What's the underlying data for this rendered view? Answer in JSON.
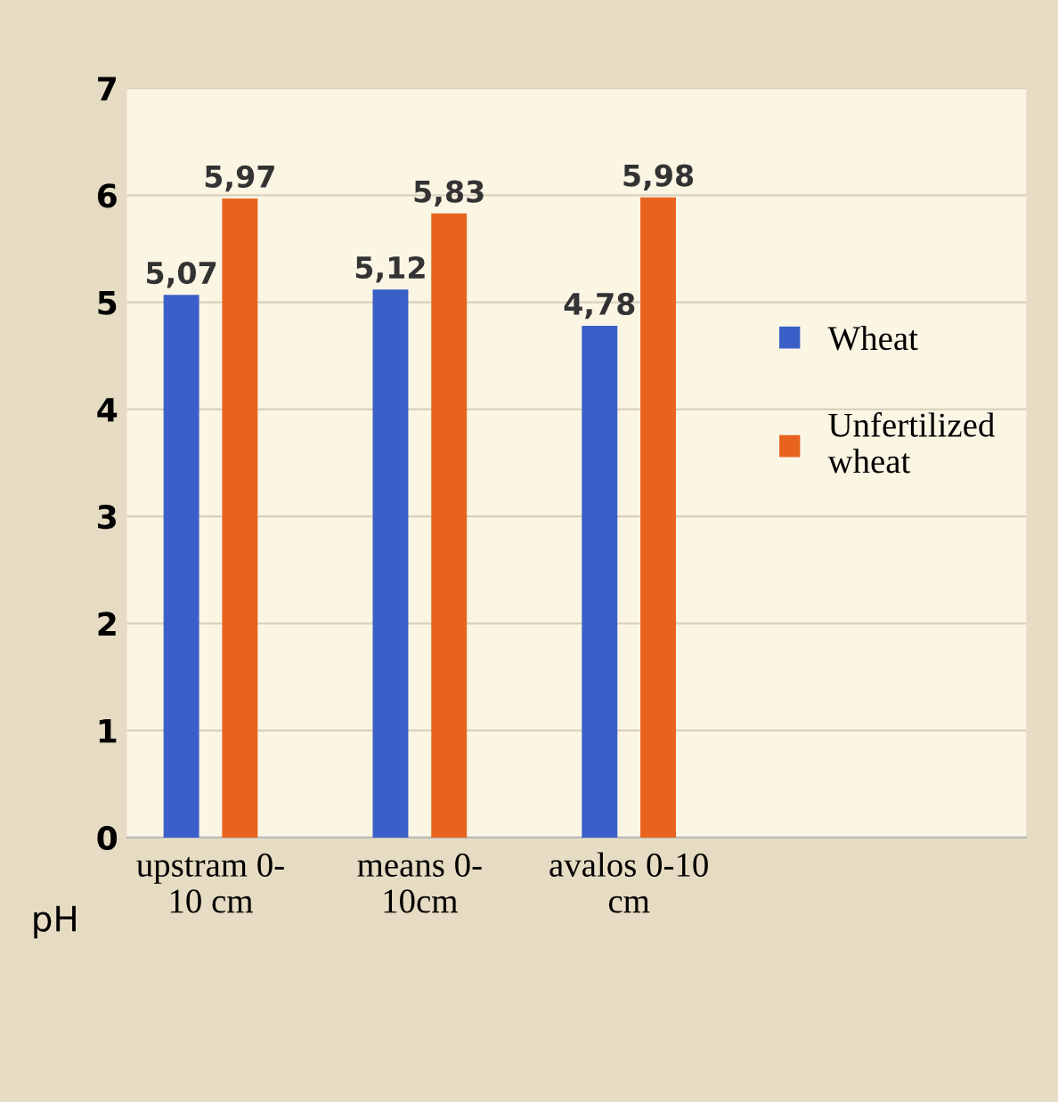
{
  "chart_data": {
    "type": "bar",
    "xlabel": "pH",
    "categories": [
      "upstram 0-\n10 cm",
      "means 0-\n10cm",
      "avalos 0-10\ncm"
    ],
    "series": [
      {
        "name": "Wheat",
        "color": "#3b5fc8",
        "values": [
          5.07,
          5.12,
          4.78
        ],
        "value_labels": [
          "5,07",
          "5,12",
          "4,78"
        ]
      },
      {
        "name": "Unfertilized\nwheat",
        "color": "#e8641e",
        "values": [
          5.97,
          5.83,
          5.98
        ],
        "value_labels": [
          "5,97",
          "5,83",
          "5,98"
        ]
      }
    ],
    "ylim": [
      0,
      7
    ],
    "yticks": [
      0,
      1,
      2,
      3,
      4,
      5,
      6,
      7
    ],
    "grid": "y",
    "legend": "right"
  }
}
